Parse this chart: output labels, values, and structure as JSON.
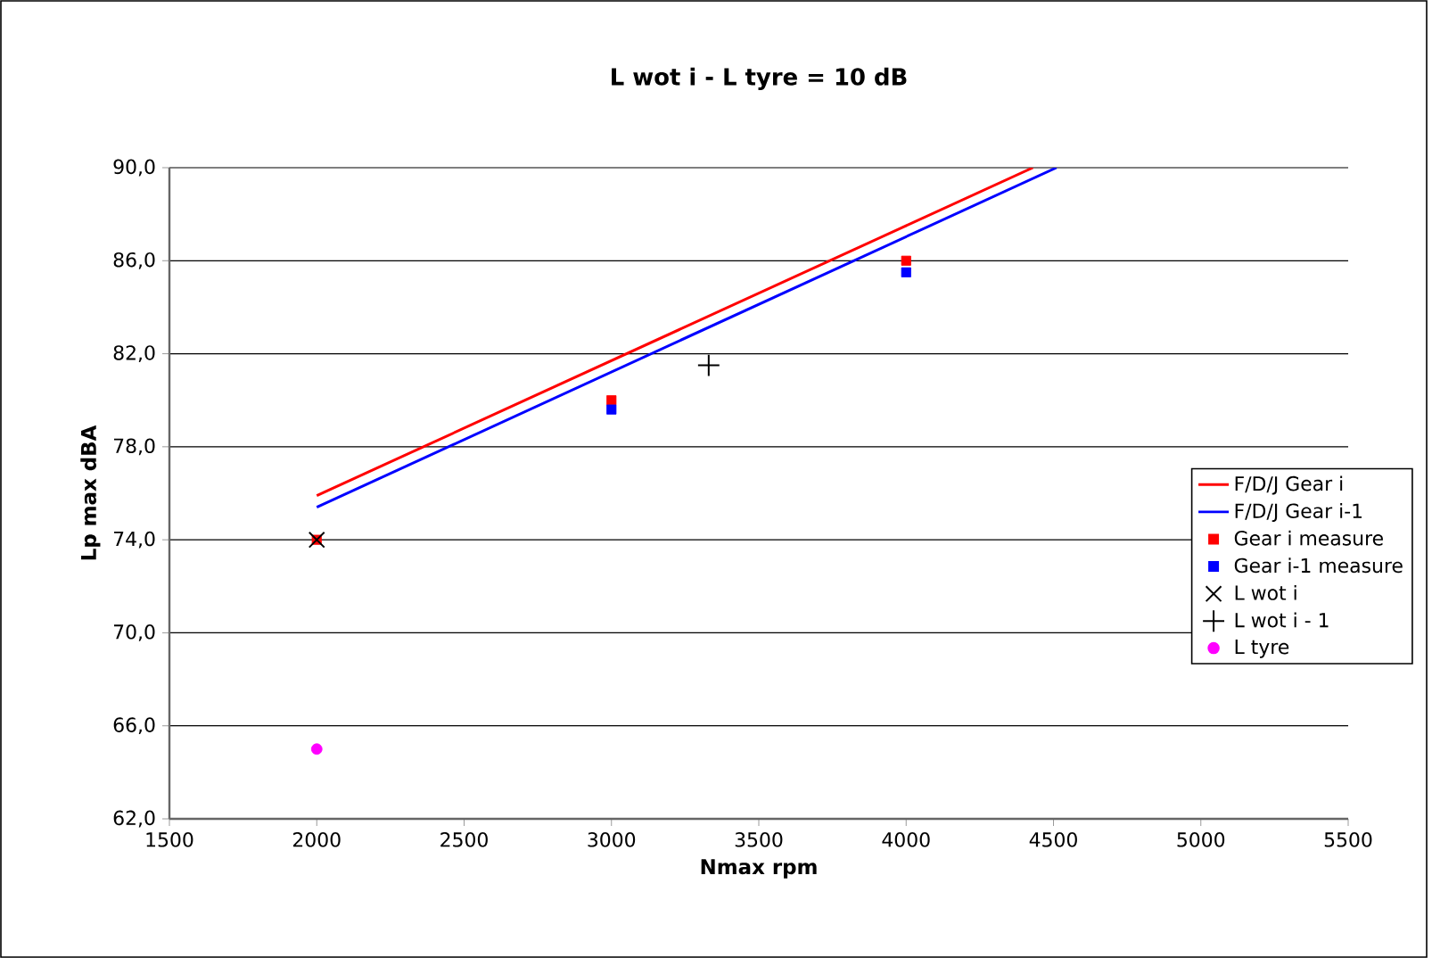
{
  "chart_data": {
    "type": "scatter",
    "title": "L wot i - L tyre = 10 dB",
    "xlabel": "Nmax rpm",
    "ylabel": "Lp max dBA",
    "xlim": [
      1500,
      5500
    ],
    "xticks": [
      1500,
      2000,
      2500,
      3000,
      3500,
      4000,
      4500,
      5000,
      5500
    ],
    "ylim": [
      62,
      90
    ],
    "yticks": [
      {
        "value": 62,
        "label": "62,0"
      },
      {
        "value": 66,
        "label": "66,0"
      },
      {
        "value": 70,
        "label": "70,0"
      },
      {
        "value": 74,
        "label": "74,0"
      },
      {
        "value": 78,
        "label": "78,0"
      },
      {
        "value": 82,
        "label": "82,0"
      },
      {
        "value": 86,
        "label": "86,0"
      },
      {
        "value": 90,
        "label": "90,0"
      }
    ],
    "grid": "y",
    "legend": "right",
    "series": [
      {
        "name": "F/D/J Gear i",
        "type": "line",
        "color": "#ff0000",
        "marker": "none",
        "x": [
          2000,
          4430
        ],
        "values": [
          75.9,
          90
        ]
      },
      {
        "name": "F/D/J Gear i-1",
        "type": "line",
        "color": "#0000ff",
        "marker": "none",
        "x": [
          2000,
          4510
        ],
        "values": [
          75.4,
          90
        ]
      },
      {
        "name": "Gear i measure",
        "color": "#ff0000",
        "marker": "square",
        "x": [
          2000,
          3000,
          4000
        ],
        "values": [
          74.0,
          80.0,
          86.0
        ]
      },
      {
        "name": "Gear i-1 measure",
        "color": "#0000ff",
        "marker": "square",
        "x": [
          3000,
          4000
        ],
        "values": [
          79.6,
          85.5
        ]
      },
      {
        "name": "L wot i",
        "color": "#000000",
        "marker": "cross",
        "x": [
          2000
        ],
        "values": [
          74.0
        ]
      },
      {
        "name": "L wot i - 1",
        "color": "#000000",
        "marker": "plus",
        "x": [
          3330
        ],
        "values": [
          81.5
        ]
      },
      {
        "name": "L tyre",
        "color": "#ff00ff",
        "marker": "circle",
        "x": [
          2000
        ],
        "values": [
          65.0
        ]
      }
    ]
  }
}
